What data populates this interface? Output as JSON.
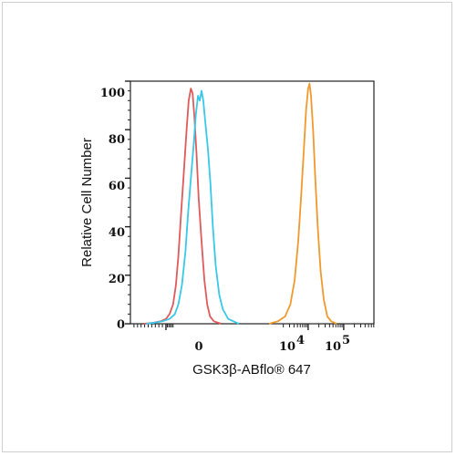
{
  "chart_data": {
    "type": "line",
    "title": "",
    "xlabel": "GSK3β-ABflo® 647",
    "ylabel": "Relative Cell Number",
    "x_scale": "biexponential",
    "x_tick_labels": [
      {
        "base": "0",
        "exp": ""
      },
      {
        "base": "10",
        "exp": "4"
      },
      {
        "base": "10",
        "exp": "5"
      }
    ],
    "y_ticks": [
      0,
      20,
      40,
      60,
      80,
      100
    ],
    "ylim": [
      0,
      100
    ],
    "grid": false,
    "series": [
      {
        "color": "#e05a5a",
        "points": [
          [
            -0.62,
            0
          ],
          [
            -0.35,
            0.4
          ],
          [
            -0.15,
            1
          ],
          [
            0.0,
            2
          ],
          [
            0.1,
            4
          ],
          [
            0.2,
            8
          ],
          [
            0.28,
            16
          ],
          [
            0.35,
            28
          ],
          [
            0.42,
            44
          ],
          [
            0.5,
            62
          ],
          [
            0.58,
            80
          ],
          [
            0.64,
            92
          ],
          [
            0.7,
            97
          ],
          [
            0.75,
            95
          ],
          [
            0.8,
            85
          ],
          [
            0.86,
            70
          ],
          [
            0.92,
            52
          ],
          [
            1.0,
            34
          ],
          [
            1.08,
            18
          ],
          [
            1.16,
            8
          ],
          [
            1.24,
            3
          ],
          [
            1.35,
            1
          ],
          [
            1.55,
            0
          ]
        ]
      },
      {
        "color": "#38c8e8",
        "points": [
          [
            -0.55,
            0
          ],
          [
            -0.3,
            0.5
          ],
          [
            -0.1,
            1
          ],
          [
            0.1,
            2
          ],
          [
            0.25,
            4
          ],
          [
            0.35,
            8
          ],
          [
            0.45,
            16
          ],
          [
            0.55,
            30
          ],
          [
            0.62,
            45
          ],
          [
            0.7,
            60
          ],
          [
            0.78,
            74
          ],
          [
            0.84,
            86
          ],
          [
            0.9,
            94
          ],
          [
            0.95,
            92
          ],
          [
            1.0,
            96
          ],
          [
            1.05,
            92
          ],
          [
            1.1,
            84
          ],
          [
            1.18,
            72
          ],
          [
            1.25,
            58
          ],
          [
            1.32,
            40
          ],
          [
            1.4,
            24
          ],
          [
            1.5,
            12
          ],
          [
            1.6,
            6
          ],
          [
            1.75,
            2
          ],
          [
            1.9,
            1
          ],
          [
            2.05,
            0
          ]
        ]
      },
      {
        "color": "#f0992e",
        "points": [
          [
            2.9,
            0
          ],
          [
            3.15,
            1
          ],
          [
            3.35,
            3
          ],
          [
            3.5,
            8
          ],
          [
            3.62,
            18
          ],
          [
            3.72,
            34
          ],
          [
            3.8,
            52
          ],
          [
            3.88,
            72
          ],
          [
            3.94,
            88
          ],
          [
            4.0,
            97
          ],
          [
            4.04,
            99
          ],
          [
            4.08,
            94
          ],
          [
            4.14,
            80
          ],
          [
            4.2,
            60
          ],
          [
            4.27,
            40
          ],
          [
            4.35,
            22
          ],
          [
            4.44,
            10
          ],
          [
            4.54,
            3
          ],
          [
            4.65,
            1
          ],
          [
            4.8,
            0
          ]
        ]
      }
    ]
  }
}
